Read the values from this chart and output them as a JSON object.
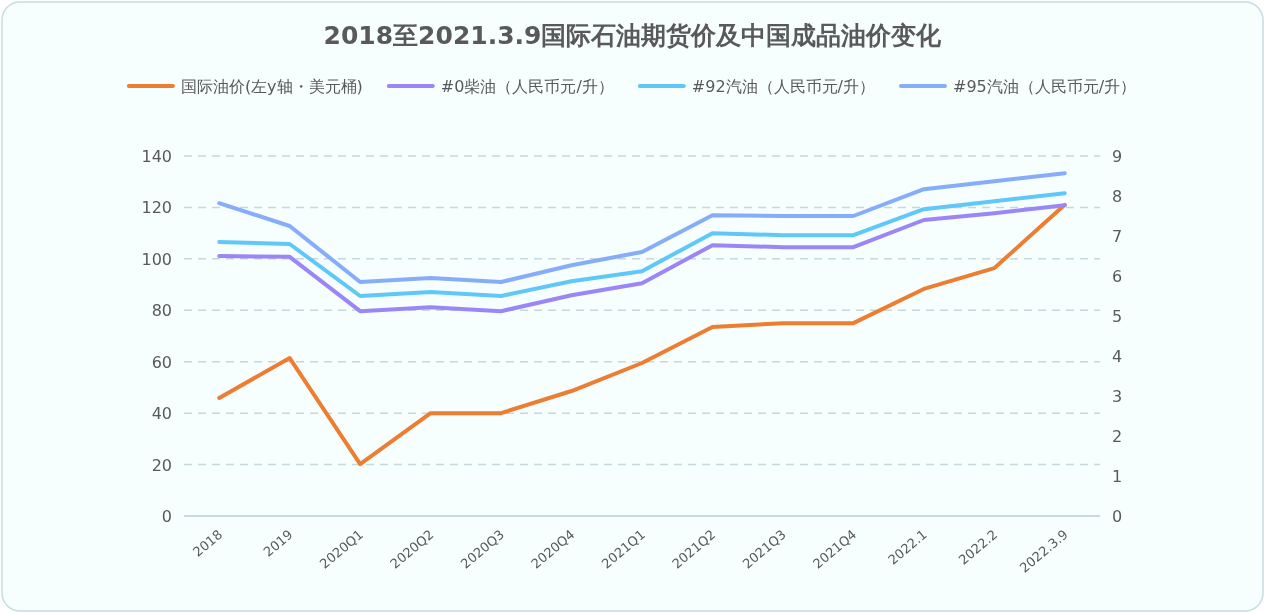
{
  "chart_data": {
    "type": "line",
    "title": "2018至2021.3.9国际石油期货价及中国成品油价变化",
    "categories": [
      "2018",
      "2019",
      "2020Q1",
      "2020Q2",
      "2020Q3",
      "2020Q4",
      "2021Q1",
      "2021Q2",
      "2021Q3",
      "2021Q4",
      "2022.1",
      "2022.2",
      "2022.3.9"
    ],
    "series": [
      {
        "name": "国际油价(左y轴・美元桶)",
        "color": "#ed7d31",
        "values": [
          45.9,
          61.4,
          20.2,
          40,
          40,
          48.6,
          59.5,
          73.5,
          75,
          75,
          88.3,
          96.4,
          121
        ]
      },
      {
        "name": "#0柴油（人民币元/升）",
        "color": "#9a86f7",
        "axis": "y2",
        "values": [
          6.5,
          6.48,
          5.12,
          5.22,
          5.12,
          5.52,
          5.82,
          6.77,
          6.72,
          6.72,
          7.4,
          7.57,
          7.77
        ]
      },
      {
        "name": "#92汽油（人民币元/升）",
        "color": "#5fc8f8",
        "axis": "y2",
        "values": [
          6.85,
          6.8,
          5.5,
          5.6,
          5.5,
          5.87,
          6.12,
          7.07,
          7.02,
          7.02,
          7.67,
          7.87,
          8.07
        ]
      },
      {
        "name": "#95汽油（人民币元/升）",
        "color": "#86adf9",
        "axis": "y2",
        "values": [
          7.82,
          7.25,
          5.85,
          5.95,
          5.85,
          6.27,
          6.6,
          7.52,
          7.5,
          7.5,
          8.17,
          8.37,
          8.57
        ]
      }
    ],
    "ylim": [
      0,
      140
    ],
    "yticks": [
      0,
      20,
      40,
      60,
      80,
      100,
      120,
      140
    ],
    "y2lim": [
      0,
      9
    ],
    "y2ticks": [
      0,
      1,
      2,
      3,
      4,
      5,
      6,
      7,
      8,
      9
    ],
    "grid": "y",
    "legend": "top",
    "marker": "none",
    "line_style": "solid"
  }
}
